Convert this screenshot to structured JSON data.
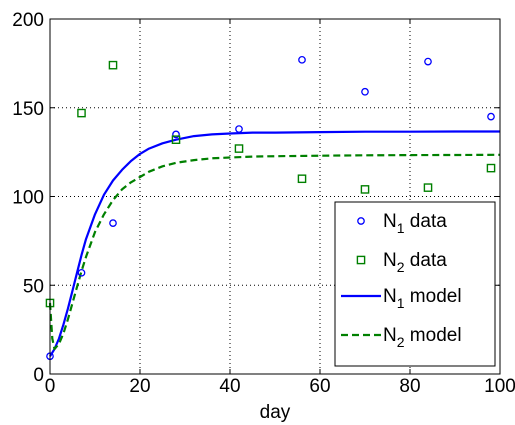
{
  "chart_data": {
    "type": "scatter",
    "xlabel": "day",
    "ylabel": "",
    "xlim": [
      0,
      100
    ],
    "ylim": [
      0,
      200
    ],
    "xticks": [
      0,
      20,
      40,
      60,
      80,
      100
    ],
    "yticks": [
      0,
      50,
      100,
      150,
      200
    ],
    "grid": true,
    "legend_position": "bottom-right",
    "series": [
      {
        "name": "N1 data",
        "label_main": "N",
        "label_sub": "1",
        "label_rest": " data",
        "kind": "markers",
        "marker": "circle",
        "color": "#0000ff",
        "x": [
          0,
          7,
          14,
          28,
          42,
          56,
          70,
          84,
          98
        ],
        "y": [
          10,
          57,
          85,
          135,
          138,
          177,
          159,
          176,
          145
        ]
      },
      {
        "name": "N2 data",
        "label_main": "N",
        "label_sub": "2",
        "label_rest": " data",
        "kind": "markers",
        "marker": "square",
        "color": "#008000",
        "x": [
          0,
          7,
          14,
          28,
          42,
          56,
          70,
          84,
          98
        ],
        "y": [
          40,
          147,
          174,
          132,
          127,
          110,
          104,
          105,
          116
        ]
      },
      {
        "name": "N1 model",
        "label_main": "N",
        "label_sub": "1",
        "label_rest": " model",
        "kind": "line",
        "dash": "solid",
        "color": "#0000ff",
        "x": [
          0,
          1,
          2,
          3,
          4,
          5,
          6,
          7,
          8,
          10,
          12,
          14,
          16,
          18,
          20,
          22,
          25,
          28,
          32,
          36,
          40,
          45,
          50,
          60,
          70,
          80,
          90,
          100
        ],
        "y": [
          10,
          14,
          20,
          28,
          37,
          47,
          57,
          67,
          76,
          90,
          101,
          109,
          115,
          120,
          124,
          127,
          130,
          132,
          134,
          135,
          135.5,
          136,
          136,
          136.3,
          136.5,
          136.5,
          136.6,
          136.6
        ]
      },
      {
        "name": "N2 model",
        "label_main": "N",
        "label_sub": "2",
        "label_rest": " model",
        "kind": "line",
        "dash": "dashed",
        "color": "#008000",
        "x": [
          0,
          0.5,
          1,
          2,
          3,
          4,
          5,
          6,
          7,
          8,
          10,
          12,
          14,
          16,
          18,
          20,
          22,
          25,
          28,
          32,
          36,
          40,
          45,
          50,
          60,
          70,
          80,
          90,
          100
        ],
        "y": [
          40,
          20,
          14,
          17,
          23,
          31,
          40,
          49,
          58,
          66,
          80,
          90,
          98,
          104,
          108,
          111,
          114,
          117,
          119,
          120.5,
          121.5,
          122,
          122.5,
          122.7,
          123,
          123.2,
          123.3,
          123.4,
          123.5
        ]
      }
    ]
  }
}
